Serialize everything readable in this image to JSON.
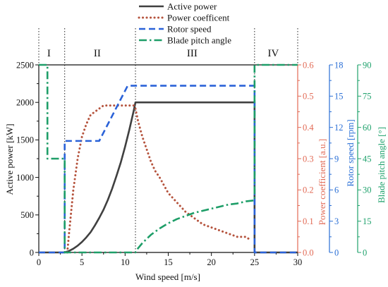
{
  "chart_data": {
    "type": "line",
    "grid": false,
    "legend_position": "top-center",
    "x_axis": {
      "label": "Wind speed [m/s]",
      "range": [
        0,
        30
      ],
      "tick_labels": [
        "0",
        "5",
        "10",
        "15",
        "20",
        "25",
        "30"
      ]
    },
    "regions": {
      "labels": [
        "I",
        "II",
        "III",
        "IV"
      ],
      "boundaries": [
        0,
        3,
        11.2,
        25,
        30
      ]
    },
    "series": [
      {
        "name": "Active power",
        "color": "#404040",
        "line_style": "solid",
        "y_axis": {
          "label": "Active power [kW]",
          "range": [
            0,
            2500
          ],
          "tick_labels": [
            "0",
            "500",
            "1000",
            "1500",
            "2000",
            "2500"
          ],
          "color": "#111111"
        },
        "x": [
          0,
          3,
          3.5,
          4,
          4.5,
          5,
          5.5,
          6,
          6.5,
          7,
          7.5,
          8,
          8.5,
          9,
          9.5,
          10,
          10.5,
          11,
          11.2,
          25,
          25,
          30
        ],
        "y": [
          0,
          0,
          20,
          50,
          90,
          140,
          200,
          270,
          360,
          460,
          570,
          700,
          850,
          1020,
          1200,
          1410,
          1640,
          1890,
          2000,
          2000,
          0,
          0
        ]
      },
      {
        "name": "Power coefficent",
        "color": "#b5533d",
        "line_style": "dotted",
        "y_axis": {
          "label": "Power coefficient [a.u.]",
          "range": [
            0,
            0.6
          ],
          "tick_labels": [
            "0.0",
            "0.1",
            "0.2",
            "0.3",
            "0.4",
            "0.5",
            "0.6"
          ],
          "color": "#e26a55"
        },
        "x": [
          3.3,
          3.5,
          4,
          4.5,
          5,
          5.5,
          6,
          6.5,
          7,
          7.5,
          8,
          9,
          10,
          10.5,
          11,
          11.2,
          11.5,
          12,
          12.5,
          13,
          13.5,
          14,
          15,
          16,
          17,
          18,
          19,
          20,
          21,
          22,
          23,
          24,
          24.5
        ],
        "y": [
          0,
          0.06,
          0.2,
          0.3,
          0.37,
          0.41,
          0.44,
          0.45,
          0.46,
          0.47,
          0.47,
          0.47,
          0.47,
          0.47,
          0.47,
          0.46,
          0.42,
          0.37,
          0.33,
          0.29,
          0.26,
          0.24,
          0.19,
          0.16,
          0.13,
          0.11,
          0.09,
          0.08,
          0.07,
          0.06,
          0.05,
          0.05,
          0.04
        ]
      },
      {
        "name": "Rotor speed",
        "color": "#2a62d8",
        "line_style": "dashed",
        "y_axis": {
          "label": "Rotor speed [rpm]",
          "range": [
            0,
            18
          ],
          "tick_labels": [
            "0",
            "3",
            "6",
            "9",
            "12",
            "15",
            "18"
          ],
          "color": "#2a6fd6"
        },
        "x": [
          0,
          3,
          3,
          7,
          10.3,
          25,
          25,
          30
        ],
        "y": [
          0,
          0,
          10.7,
          10.7,
          16,
          16,
          0,
          0
        ]
      },
      {
        "name": "Blade pitch angle",
        "color": "#1e9e68",
        "line_style": "dash-dot",
        "y_axis": {
          "label": "Blade pitch angle [°]",
          "range": [
            0,
            90
          ],
          "tick_labels": [
            "0",
            "15",
            "30",
            "45",
            "60",
            "75",
            "90"
          ],
          "color": "#1fa26c"
        },
        "x": [
          0,
          1,
          1,
          3,
          3,
          11.2,
          11.5,
          12,
          12.5,
          13,
          13.5,
          14,
          15,
          16,
          17,
          18,
          19,
          20,
          21,
          22,
          23,
          24,
          25,
          25,
          30
        ],
        "y": [
          90,
          90,
          45,
          45,
          0,
          0,
          2,
          4.5,
          6.5,
          8.5,
          10,
          11.5,
          14,
          16,
          17.5,
          19,
          20,
          21,
          22,
          23,
          23.5,
          24.5,
          25,
          90,
          90
        ]
      }
    ]
  }
}
